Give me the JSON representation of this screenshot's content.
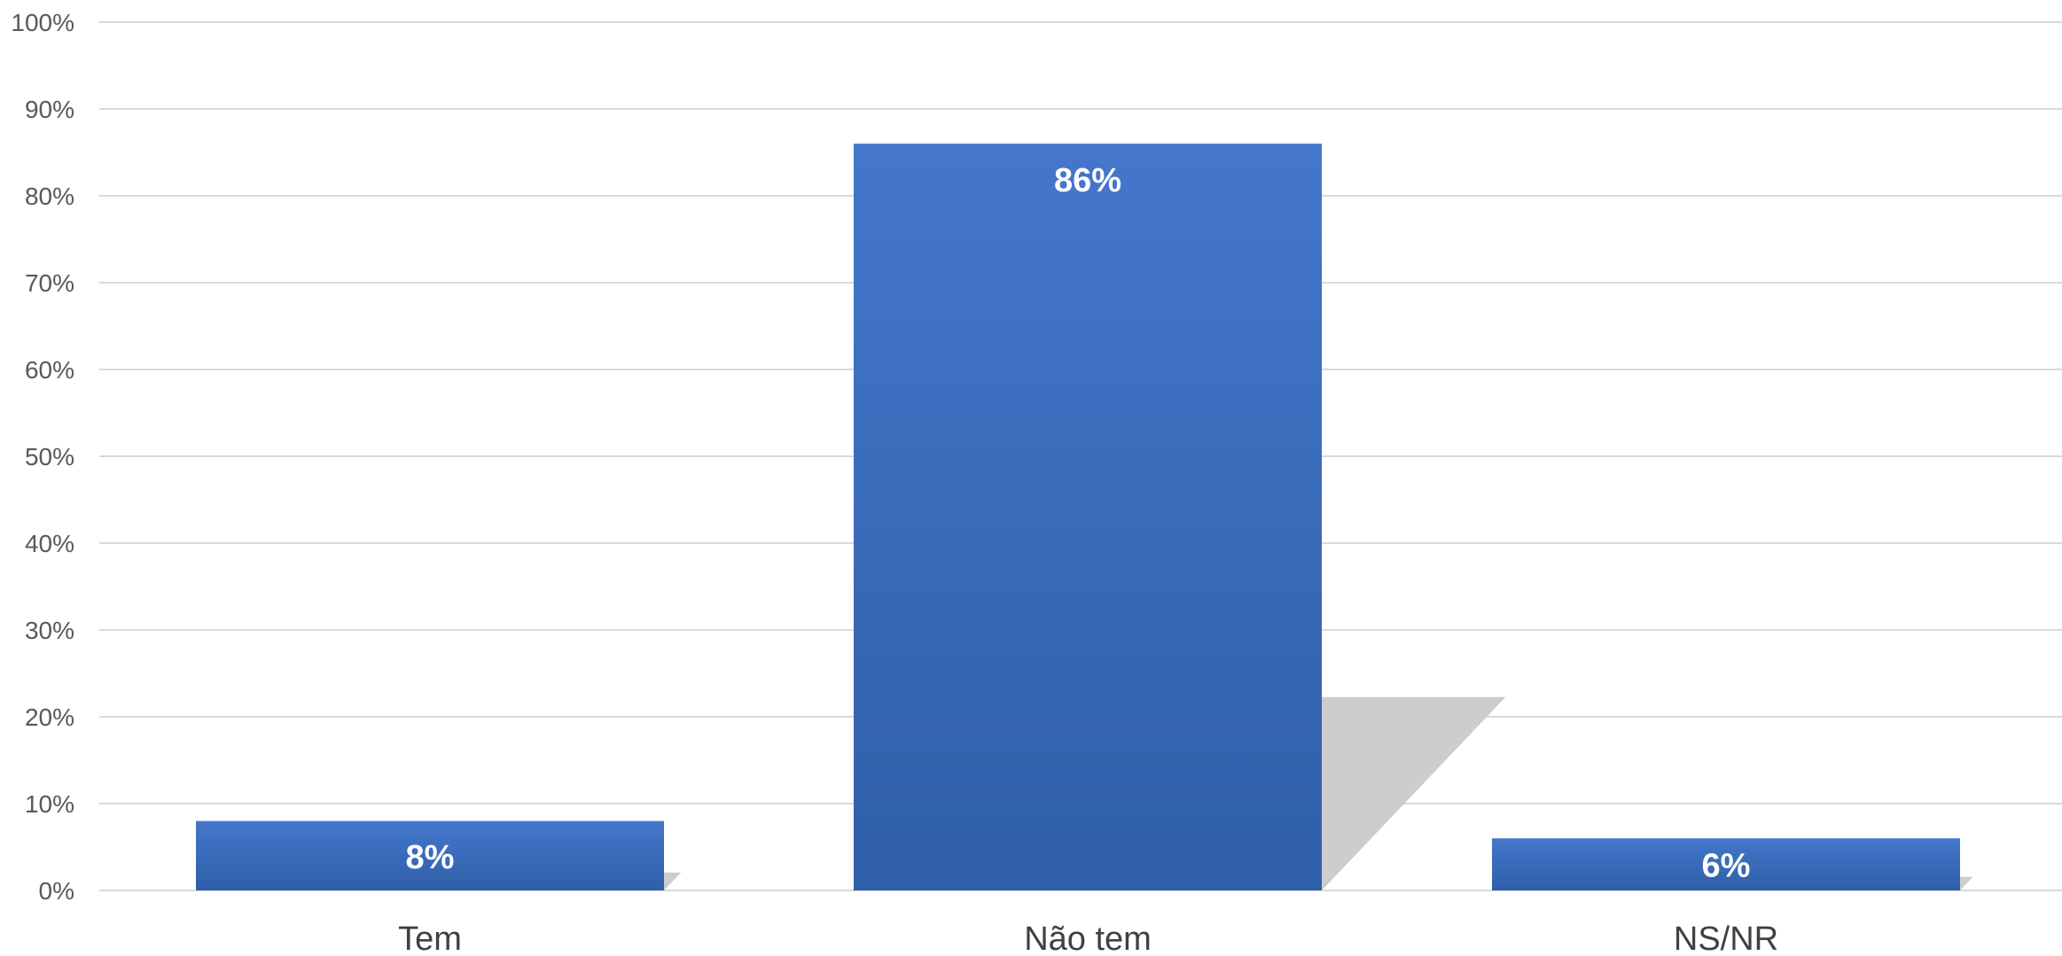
{
  "chart_data": {
    "type": "bar",
    "categories": [
      "Tem",
      "Não tem",
      "NS/NR"
    ],
    "values": [
      8,
      86,
      6
    ],
    "data_labels": [
      "8%",
      "86%",
      "6%"
    ],
    "title": "",
    "xlabel": "",
    "ylabel": "",
    "ylim": [
      0,
      100
    ],
    "yticks": [
      0,
      10,
      20,
      30,
      40,
      50,
      60,
      70,
      80,
      90,
      100
    ],
    "ytick_labels": [
      "0%",
      "10%",
      "20%",
      "30%",
      "40%",
      "50%",
      "60%",
      "70%",
      "80%",
      "90%",
      "100%"
    ],
    "grid": true,
    "legend": "none",
    "bar_color_top": "#4477cc",
    "bar_color_bottom": "#2f5fa8",
    "shadow_color": "#c8c8c8"
  }
}
